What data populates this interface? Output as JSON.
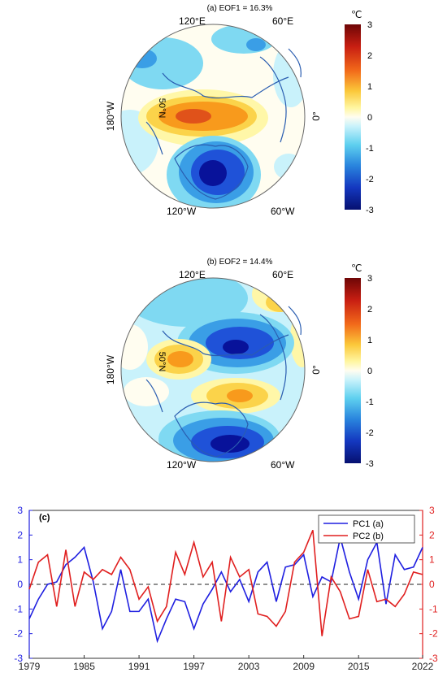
{
  "colors": {
    "pc1": "#1f1fe0",
    "pc2": "#e01f1f",
    "coast": "#2a5db0",
    "colorscale": [
      "#08129a",
      "#1f52d8",
      "#3a9ee6",
      "#7fd9f2",
      "#c9f2fb",
      "#fffbe6",
      "#fff7a8",
      "#fbd34a",
      "#f89a1c",
      "#e0521a",
      "#a81010",
      "#6e0606"
    ]
  },
  "panel_a": {
    "title": "(a) EOF1 = 16.3%",
    "unit": "℃",
    "lon_labels": [
      "120°E",
      "60°E",
      "180°W",
      "0°",
      "120°W",
      "60°W"
    ],
    "lat_label": "50°N",
    "colorbar_ticks": [
      "3",
      "2",
      "1",
      "0",
      "-1",
      "-2",
      "-3"
    ]
  },
  "panel_b": {
    "title": "(b) EOF2 = 14.4%",
    "unit": "℃",
    "lon_labels": [
      "120°E",
      "60°E",
      "180°W",
      "0°",
      "120°W",
      "60°W"
    ],
    "lat_label": "50°N",
    "colorbar_ticks": [
      "3",
      "2",
      "1",
      "0",
      "-1",
      "-2",
      "-3"
    ]
  },
  "chart_data": {
    "type": "line",
    "panel_label": "(c)",
    "x_tick_labels": [
      "1979",
      "1985",
      "1991",
      "1997",
      "2003",
      "2009",
      "2015",
      "2022"
    ],
    "xlim": [
      1979,
      2022
    ],
    "ylim_left": [
      -3,
      3
    ],
    "ylim_right": [
      -3,
      3
    ],
    "y_ticks": [
      "3",
      "2",
      "1",
      "0",
      "-1",
      "-2",
      "-3"
    ],
    "legend_position": "top-right",
    "x": [
      1979,
      1980,
      1981,
      1982,
      1983,
      1984,
      1985,
      1986,
      1987,
      1988,
      1989,
      1990,
      1991,
      1992,
      1993,
      1994,
      1995,
      1996,
      1997,
      1998,
      1999,
      2000,
      2001,
      2002,
      2003,
      2004,
      2005,
      2006,
      2007,
      2008,
      2009,
      2010,
      2011,
      2012,
      2013,
      2014,
      2015,
      2016,
      2017,
      2018,
      2019,
      2020,
      2021,
      2022
    ],
    "series": [
      {
        "name": "PC1 (a)",
        "axis": "left",
        "values": [
          -1.4,
          -0.6,
          0.0,
          0.1,
          0.8,
          1.1,
          1.5,
          0.1,
          -1.8,
          -1.1,
          0.6,
          -1.1,
          -1.1,
          -0.6,
          -2.3,
          -1.4,
          -0.6,
          -0.7,
          -1.8,
          -0.8,
          -0.2,
          0.5,
          -0.3,
          0.2,
          -0.7,
          0.5,
          0.9,
          -0.7,
          0.7,
          0.8,
          1.2,
          -0.5,
          0.3,
          0.1,
          1.9,
          0.5,
          -0.6,
          1.0,
          1.7,
          -0.8,
          1.2,
          0.6,
          0.7,
          1.5
        ]
      },
      {
        "name": "PC2 (b)",
        "axis": "right",
        "values": [
          -0.2,
          0.9,
          1.2,
          -0.9,
          1.4,
          -0.9,
          0.5,
          0.2,
          0.6,
          0.4,
          1.1,
          0.6,
          -0.6,
          -0.1,
          -1.5,
          -0.9,
          1.3,
          0.4,
          1.7,
          0.3,
          0.9,
          -1.5,
          1.1,
          0.3,
          0.6,
          -1.2,
          -1.3,
          -1.7,
          -1.1,
          0.9,
          1.3,
          2.2,
          -2.1,
          0.3,
          -0.3,
          -1.4,
          -1.3,
          0.6,
          -0.7,
          -0.6,
          -0.9,
          -0.4,
          0.5,
          0.4
        ]
      }
    ]
  }
}
